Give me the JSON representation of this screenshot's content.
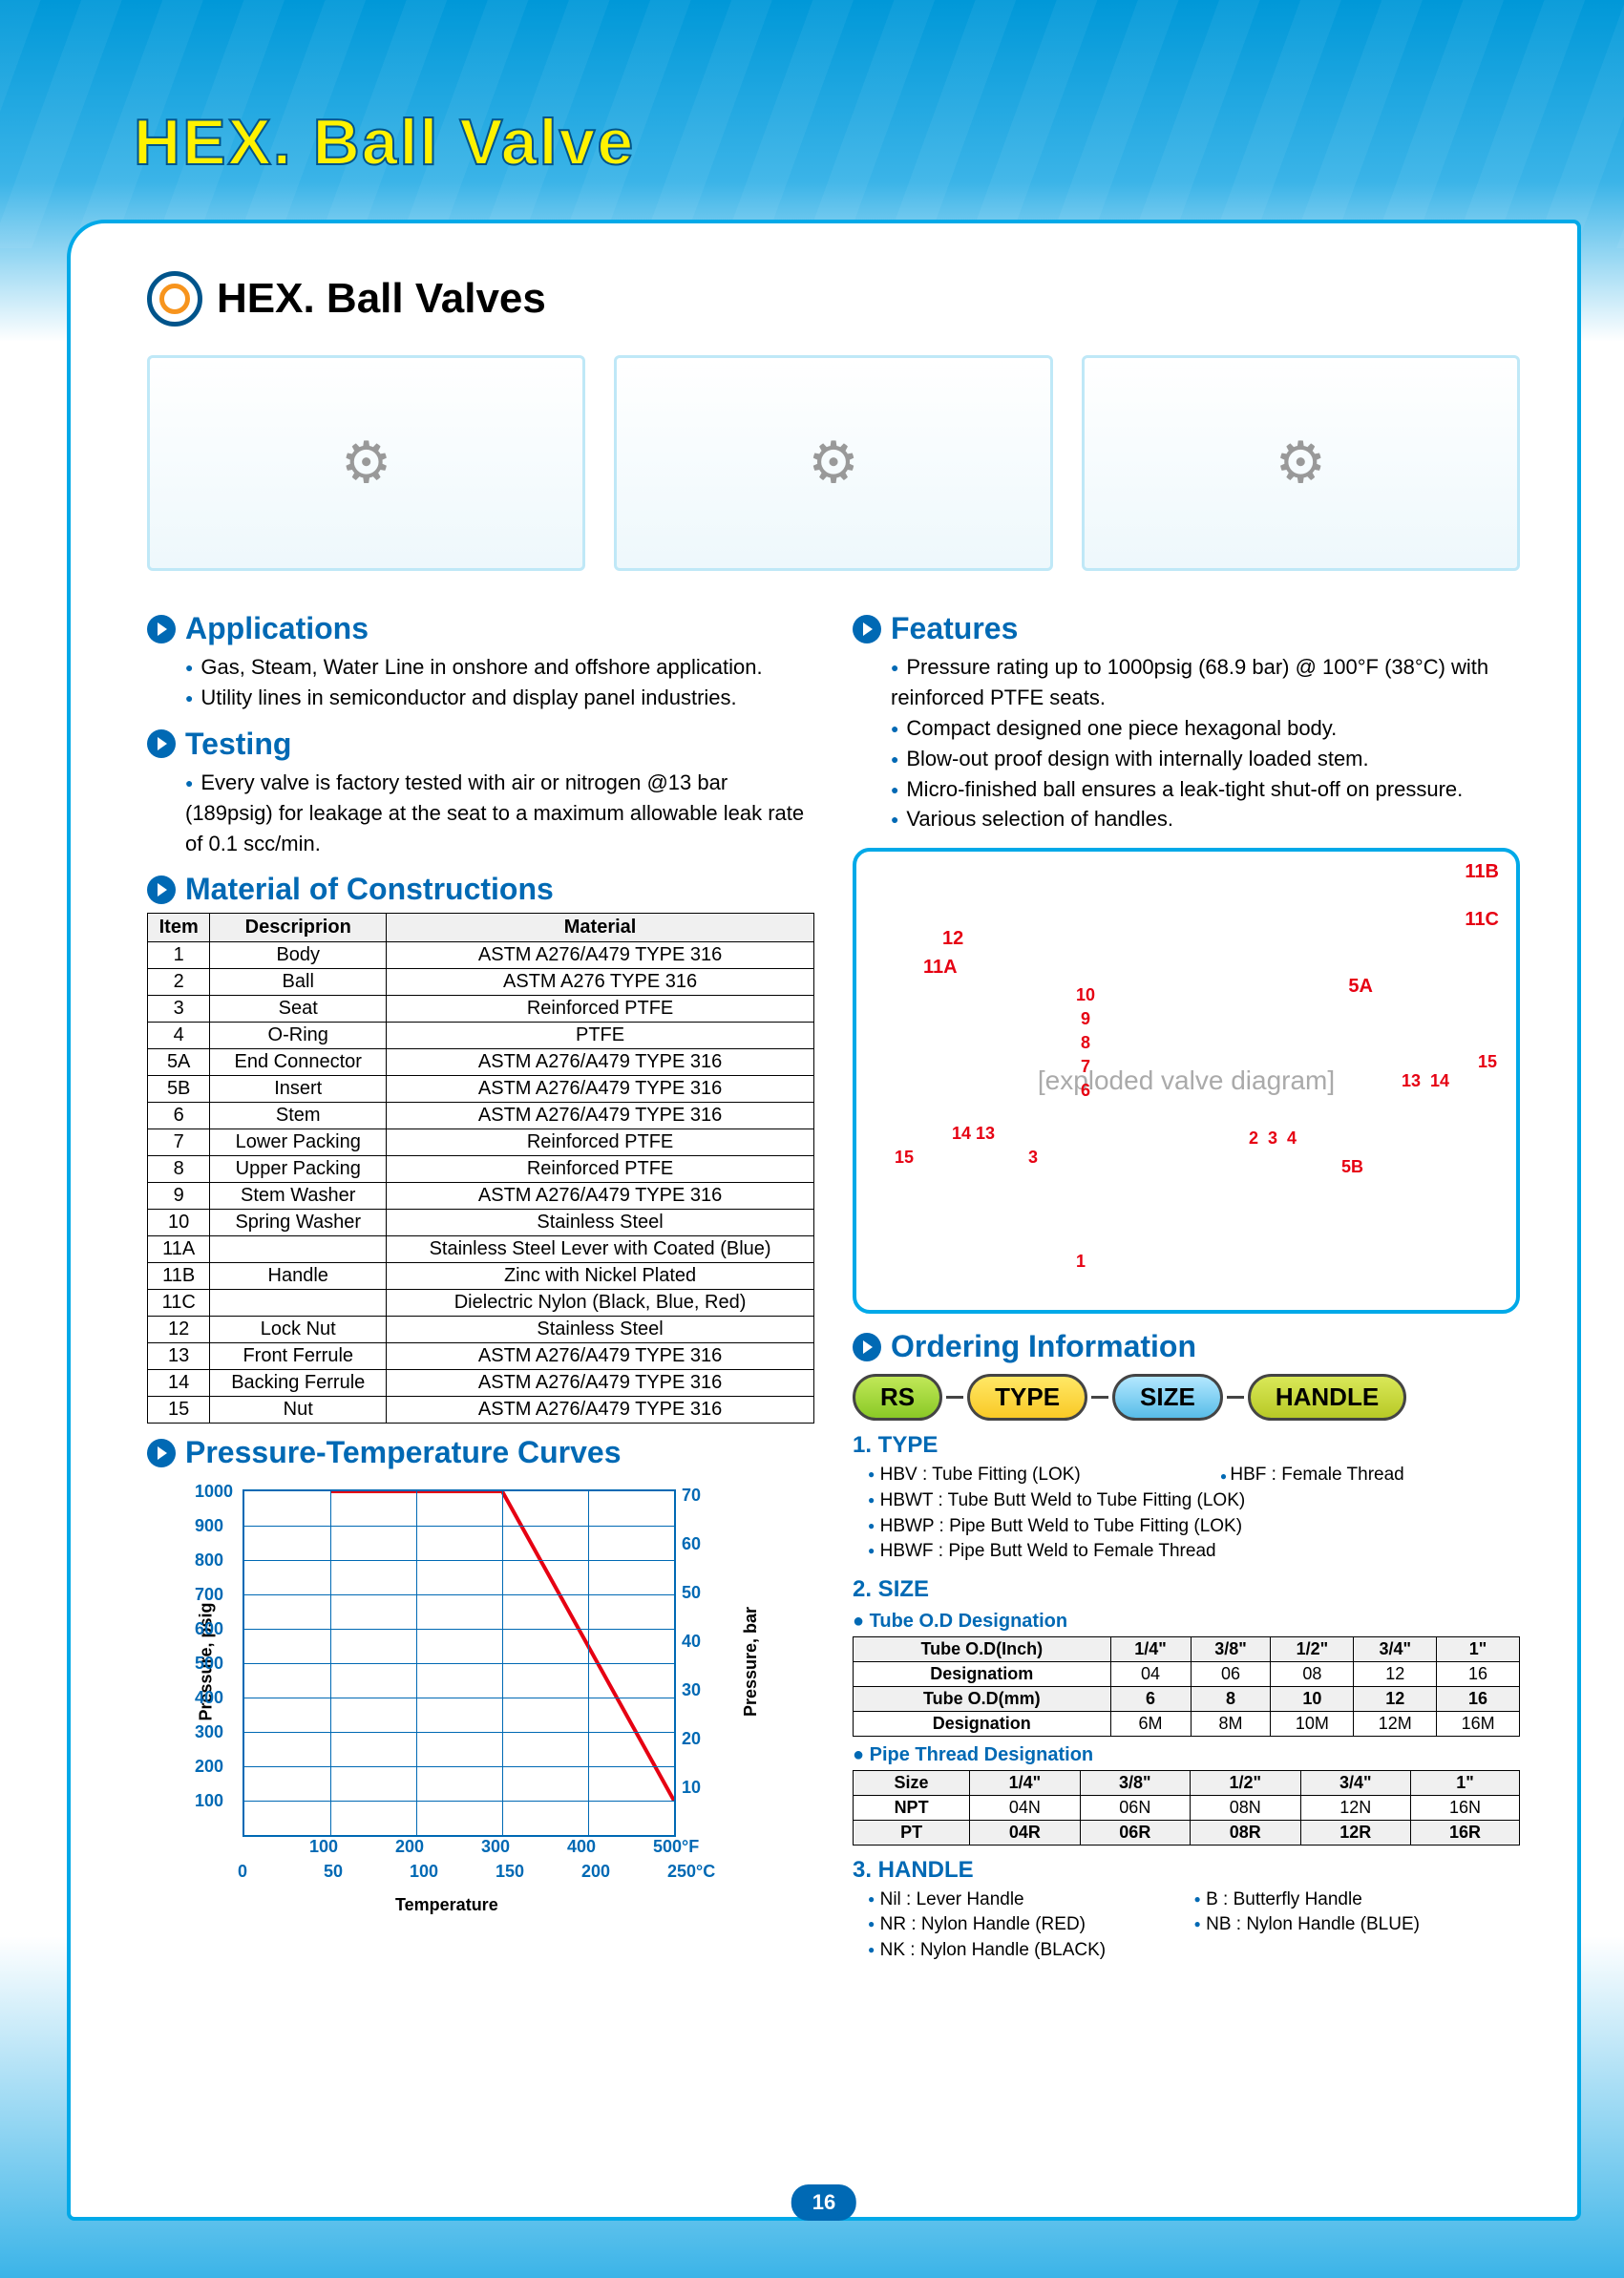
{
  "page_title": "HEX. Ball Valve",
  "subtitle": "HEX. Ball Valves",
  "page_number": "16",
  "sections": {
    "applications": {
      "title": "Applications",
      "items": [
        "Gas, Steam, Water Line in onshore and offshore application.",
        "Utility lines in semiconductor and display panel industries."
      ]
    },
    "testing": {
      "title": "Testing",
      "items": [
        "Every valve is factory tested with air or nitrogen @13 bar (189psig) for leakage at the seat to a maximum allowable leak rate of 0.1 scc/min."
      ]
    },
    "features": {
      "title": "Features",
      "items": [
        "Pressure rating up to 1000psig (68.9 bar) @ 100°F (38°C) with reinforced PTFE seats.",
        "Compact  designed one piece hexagonal body.",
        "Blow-out  proof design with internally loaded stem.",
        "Micro-finished ball ensures a leak-tight shut-off on pressure.",
        "Various selection of handles."
      ]
    },
    "materials": {
      "title": "Material of Constructions",
      "columns": [
        "Item",
        "Descriprion",
        "Material"
      ],
      "rows": [
        [
          "1",
          "Body",
          "ASTM A276/A479 TYPE 316"
        ],
        [
          "2",
          "Ball",
          "ASTM A276 TYPE 316"
        ],
        [
          "3",
          "Seat",
          "Reinforced PTFE"
        ],
        [
          "4",
          "O-Ring",
          "PTFE"
        ],
        [
          "5A",
          "End Connector",
          "ASTM A276/A479 TYPE 316"
        ],
        [
          "5B",
          "Insert",
          "ASTM A276/A479 TYPE 316"
        ],
        [
          "6",
          "Stem",
          "ASTM A276/A479 TYPE 316"
        ],
        [
          "7",
          "Lower Packing",
          "Reinforced PTFE"
        ],
        [
          "8",
          "Upper Packing",
          "Reinforced PTFE"
        ],
        [
          "9",
          "Stem Washer",
          "ASTM A276/A479 TYPE 316"
        ],
        [
          "10",
          "Spring Washer",
          "Stainless Steel"
        ],
        [
          "11A",
          "",
          "Stainless Steel Lever with Coated (Blue)"
        ],
        [
          "11B",
          "Handle",
          "Zinc with Nickel Plated"
        ],
        [
          "11C",
          "",
          "Dielectric Nylon (Black, Blue, Red)"
        ],
        [
          "12",
          "Lock Nut",
          "Stainless Steel"
        ],
        [
          "13",
          "Front Ferrule",
          "ASTM A276/A479 TYPE 316"
        ],
        [
          "14",
          "Backing Ferrule",
          "ASTM A276/A479 TYPE 316"
        ],
        [
          "15",
          "Nut",
          "ASTM A276/A479 TYPE 316"
        ]
      ]
    },
    "pt_curves": {
      "title": "Pressure-Temperature Curves",
      "y_axis": "Pressure, psig",
      "y2_axis": "Pressure, bar",
      "x_axis": "Temperature",
      "y_ticks": [
        "1000",
        "900",
        "800",
        "700",
        "600",
        "500",
        "400",
        "300",
        "200",
        "100"
      ],
      "y2_ticks": [
        "70",
        "60",
        "50",
        "40",
        "30",
        "20",
        "10"
      ],
      "x_ticks_f": [
        "100",
        "200",
        "300",
        "400",
        "500°F"
      ],
      "x_ticks_c": [
        "0",
        "50",
        "100",
        "150",
        "200",
        "250°C"
      ],
      "line_color": "#e60012",
      "grid_color": "#0069b4",
      "curve_points_psig_vs_F": [
        [
          100,
          1000
        ],
        [
          300,
          1000
        ],
        [
          500,
          100
        ]
      ]
    },
    "ordering": {
      "title": "Ordering Information",
      "pills": [
        "RS",
        "TYPE",
        "SIZE",
        "HANDLE"
      ],
      "type": {
        "label": "1. TYPE",
        "items_left": [
          "HBV : Tube Fitting (LOK)",
          "HBWT : Tube Butt Weld to Tube Fitting (LOK)",
          "HBWP : Pipe Butt Weld to Tube Fitting (LOK)",
          "HBWF : Pipe Butt Weld to Female Thread"
        ],
        "items_right": [
          "HBF : Female Thread"
        ]
      },
      "size": {
        "label": "2. SIZE",
        "tube_head": "Tube O.D Designation",
        "tube_rows": [
          [
            "Tube O.D(Inch)",
            "1/4\"",
            "3/8\"",
            "1/2\"",
            "3/4\"",
            "1\""
          ],
          [
            "Designatiom",
            "04",
            "06",
            "08",
            "12",
            "16"
          ],
          [
            "Tube O.D(mm)",
            "6",
            "8",
            "10",
            "12",
            "16"
          ],
          [
            "Designation",
            "6M",
            "8M",
            "10M",
            "12M",
            "16M"
          ]
        ],
        "pipe_head": "Pipe Thread Designation",
        "pipe_rows": [
          [
            "Size",
            "1/4\"",
            "3/8\"",
            "1/2\"",
            "3/4\"",
            "1\""
          ],
          [
            "NPT",
            "04N",
            "06N",
            "08N",
            "12N",
            "16N"
          ],
          [
            "PT",
            "04R",
            "06R",
            "08R",
            "12R",
            "16R"
          ]
        ]
      },
      "handle": {
        "label": "3. HANDLE",
        "items": [
          "Nil : Lever Handle",
          "B : Butterfly Handle",
          "NR : Nylon Handle (RED)",
          "NB : Nylon Handle (BLUE)",
          "NK : Nylon Handle (BLACK)"
        ]
      }
    }
  }
}
